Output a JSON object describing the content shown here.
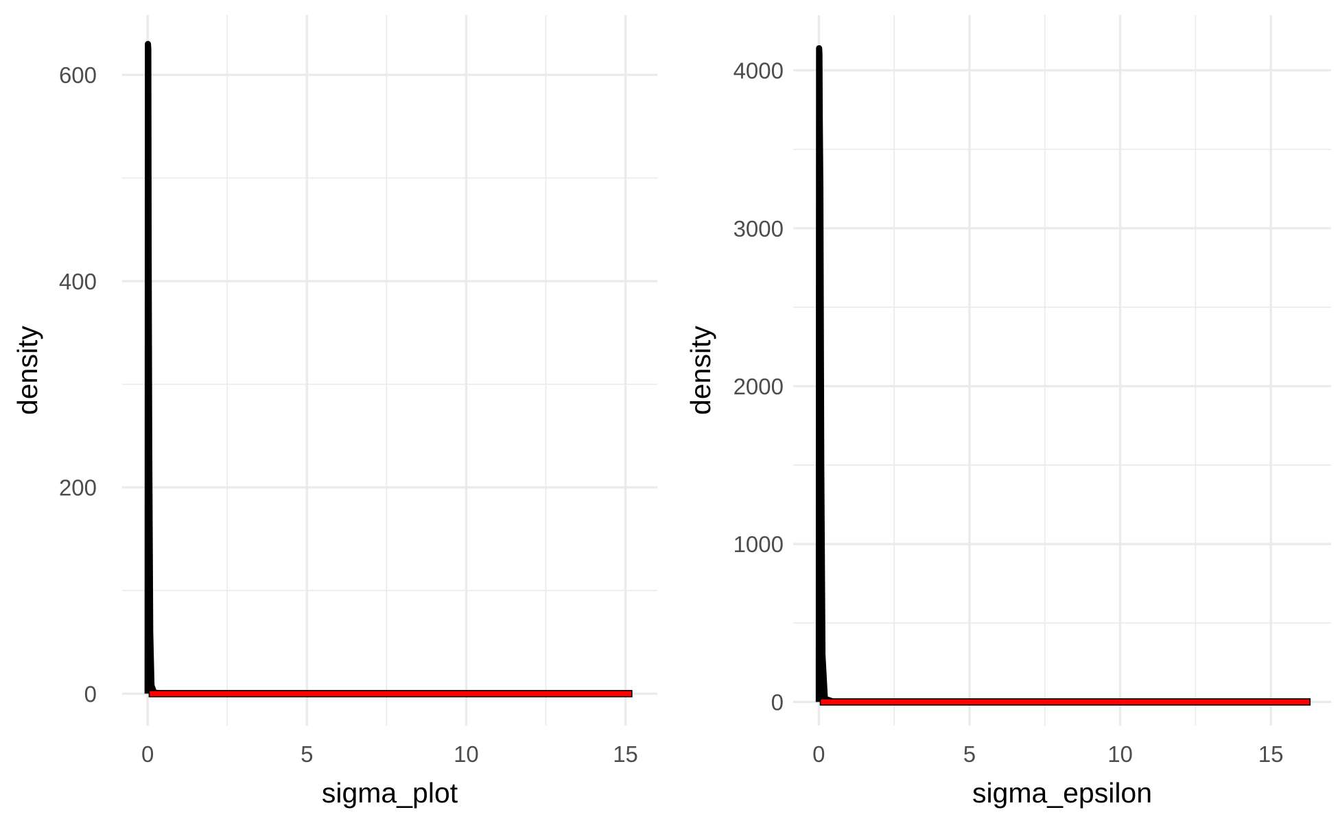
{
  "chart_data": [
    {
      "type": "area",
      "xlabel": "sigma_plot",
      "ylabel": "density",
      "xlim": [
        -0.8,
        16.0
      ],
      "ylim": [
        -31,
        658
      ],
      "x_ticks": [
        0,
        5,
        10,
        15
      ],
      "y_ticks": [
        0,
        200,
        400,
        600
      ],
      "grid": true,
      "series": [
        {
          "x": [
            0.0,
            0.01,
            0.02,
            0.03,
            0.05,
            0.08,
            0.12,
            0.2,
            0.5,
            1,
            5,
            10,
            15.2
          ],
          "y": [
            0,
            630,
            625,
            433,
            235,
            60,
            8,
            1,
            0.05,
            0,
            0,
            0,
            0
          ],
          "color": "#000000"
        },
        {
          "x": [
            0.05,
            15.2
          ],
          "y": [
            0,
            0
          ],
          "color": "#ff0000"
        }
      ]
    },
    {
      "type": "area",
      "xlabel": "sigma_epsilon",
      "ylabel": "density",
      "xlim": [
        -0.85,
        17.0
      ],
      "ylim": [
        -150,
        4350
      ],
      "x_ticks": [
        0,
        5,
        10,
        15
      ],
      "y_ticks": [
        0,
        1000,
        2000,
        3000,
        4000
      ],
      "grid": true,
      "series": [
        {
          "x": [
            0.0,
            0.01,
            0.02,
            0.03,
            0.05,
            0.08,
            0.12,
            0.2,
            0.5,
            1,
            5,
            10,
            16.3
          ],
          "y": [
            0,
            4140,
            4100,
            3700,
            3260,
            1500,
            300,
            20,
            0.5,
            0,
            0,
            0,
            0
          ],
          "color": "#000000"
        },
        {
          "x": [
            0.05,
            16.3
          ],
          "y": [
            0,
            0
          ],
          "color": "#ff0000"
        }
      ]
    }
  ]
}
